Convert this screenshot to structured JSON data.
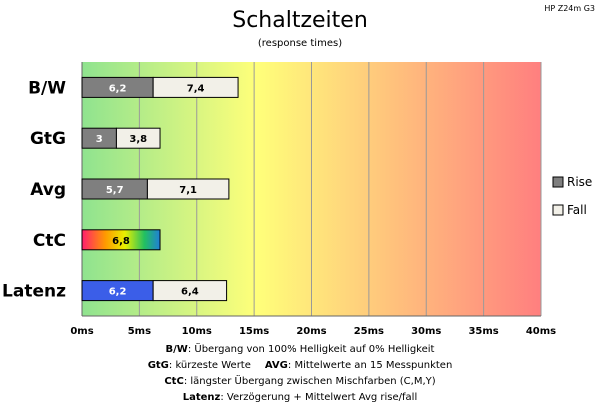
{
  "chart_data": {
    "type": "bar",
    "orientation": "horizontal",
    "stacked": true,
    "title": "Schaltzeiten",
    "subtitle": "(response times)",
    "model": "HP Z24m G3",
    "categories": [
      "B/W",
      "GtG",
      "Avg",
      "CtC",
      "Latenz"
    ],
    "series": [
      {
        "name": "Rise",
        "values": [
          6.2,
          3,
          5.7,
          6.8,
          6.2
        ],
        "labels": [
          "6,2",
          "3",
          "5,7",
          "6,8",
          "6,2"
        ],
        "color": "#7f7f7f"
      },
      {
        "name": "Fall",
        "values": [
          7.4,
          3.8,
          7.1,
          0,
          6.4
        ],
        "labels": [
          "7,4",
          "3,8",
          "7,1",
          "",
          "6,4"
        ],
        "color": "#f2f0e8"
      }
    ],
    "special_colors": {
      "CtC": "rainbow",
      "Latenz": "#3b5ee8"
    },
    "xlim": [
      0,
      40
    ],
    "xticks": [
      "0ms",
      "5ms",
      "10ms",
      "15ms",
      "20ms",
      "25ms",
      "30ms",
      "35ms",
      "40ms"
    ],
    "xtick_values": [
      0,
      5,
      10,
      15,
      20,
      25,
      30,
      35,
      40
    ],
    "grid": true,
    "legend_position": "right",
    "background_gradient": [
      "#8fe38f",
      "#ffff80",
      "#ff8080"
    ]
  },
  "notes": [
    {
      "key": "B/W",
      "text": ":  Übergang von 100% Helligkeit auf 0% Helligkeit"
    },
    {
      "key": "GtG",
      "text": ": kürzeste  Werte",
      "key2": "AVG",
      "text2": ": Mittelwerte  an 15 Messpunkten"
    },
    {
      "key": "CtC",
      "text": ": längster Übergang  zwischen Mischfarben  (C,M,Y)"
    },
    {
      "key": "Latenz",
      "text": ": Verzögerung  + Mittelwert Avg rise/fall"
    }
  ]
}
